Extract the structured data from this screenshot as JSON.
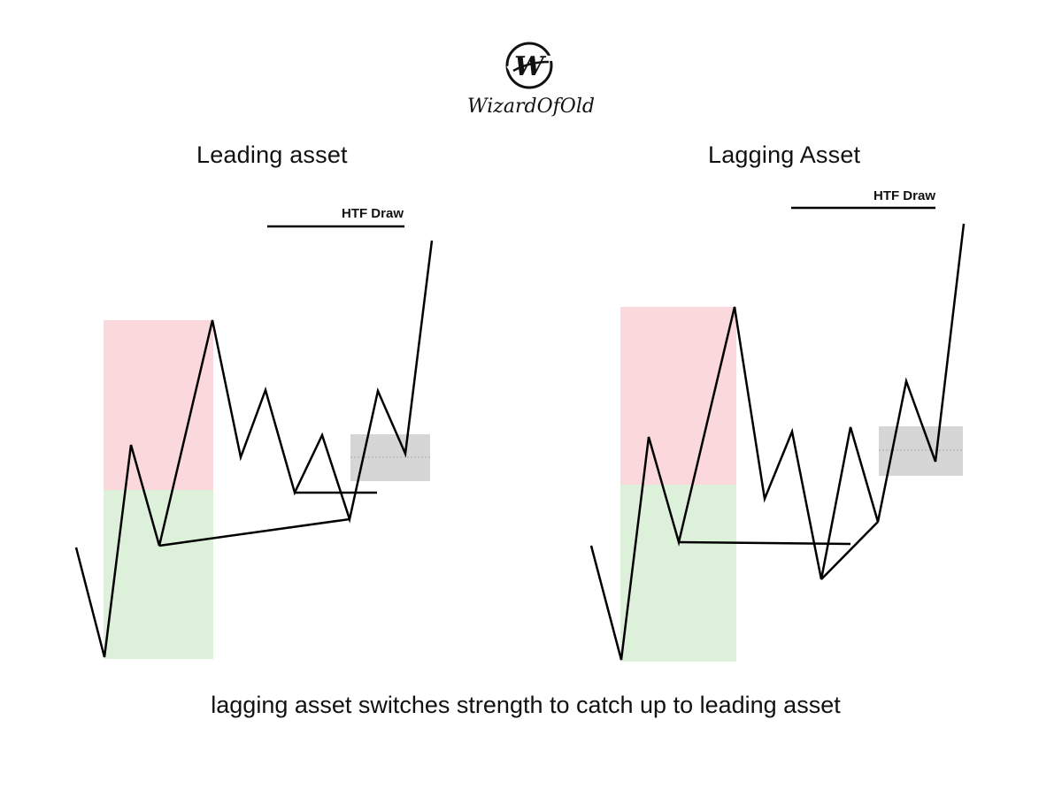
{
  "logo": {
    "text": "WizardOfOld",
    "monogram": "W"
  },
  "panels": {
    "left": {
      "title": "Leading asset",
      "draw_label": "HTF Draw"
    },
    "right": {
      "title": "Lagging Asset",
      "draw_label": "HTF Draw"
    }
  },
  "caption": "lagging asset switches strength to catch up to leading asset",
  "colors": {
    "premium_zone": "#fad8dc",
    "discount_zone": "#ddf1da",
    "fvg_box": "#d6d6d6",
    "line": "#000000"
  }
}
